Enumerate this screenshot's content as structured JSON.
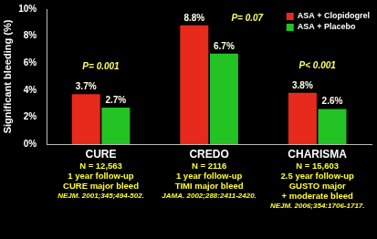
{
  "chart_data": {
    "type": "bar",
    "y_label": "Significant bleeding (%)",
    "categories": [
      "CURE",
      "CREDO",
      "CHARISMA"
    ],
    "category_details": [
      [
        "N = 12,563",
        "1 year follow-up",
        "CURE major bleed",
        "NEJM. 2001;345;494-502."
      ],
      [
        "N = 2116",
        "1 year follow-up",
        "TIMI major bleed",
        "JAMA. 2002;288:2411-2420."
      ],
      [
        "N = 15,603",
        "2.5 year follow-up",
        "GUSTO major",
        "+ moderate bleed",
        "NEJM. 2006;354:1706-1717."
      ]
    ],
    "series": [
      {
        "name": "ASA + Clopidogrel",
        "color": "#e82a1c",
        "values": [
          3.7,
          8.8,
          3.8
        ],
        "value_labels": [
          "3.7%",
          "8.8%",
          "3.8%"
        ]
      },
      {
        "name": "ASA + Placebo",
        "color": "#22c322",
        "values": [
          2.7,
          6.7,
          2.6
        ],
        "value_labels": [
          "2.7%",
          "6.7%",
          "2.6%"
        ]
      }
    ],
    "annotations": [
      "P= 0.001",
      "P= 0.07",
      "P< 0.001"
    ],
    "ylim": [
      0,
      10
    ],
    "yticks": [
      {
        "value": 0,
        "label": "0%"
      },
      {
        "value": 2,
        "label": "2%"
      },
      {
        "value": 4,
        "label": "4%"
      },
      {
        "value": 6,
        "label": "6%"
      },
      {
        "value": 8,
        "label": "8%"
      },
      {
        "value": 10,
        "label": "10%"
      }
    ],
    "grid": false,
    "legend": "upper right",
    "data_labels": true
  }
}
